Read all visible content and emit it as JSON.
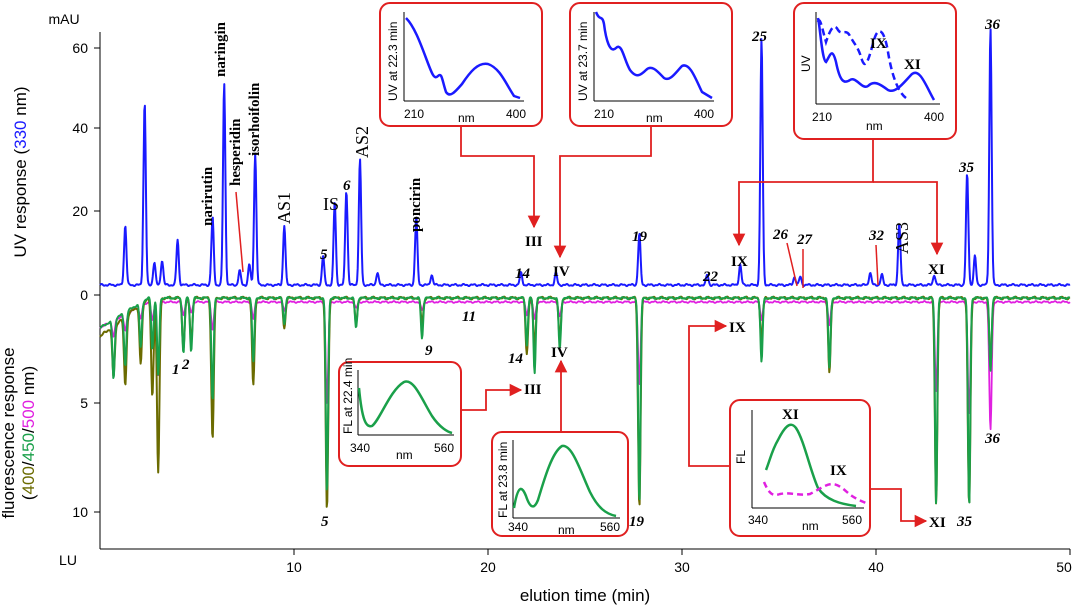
{
  "colors": {
    "uv": "#1a1aff",
    "fl400": "#6b6b00",
    "fl450": "#1aa04a",
    "fl500": "#e020e0",
    "callout": "#e02020",
    "axis": "#000000"
  },
  "chart_data": {
    "type": "line",
    "xlabel": "elution time (min)",
    "xlim": [
      0,
      50
    ],
    "x_ticks": [
      "10",
      "20",
      "30",
      "40",
      "50"
    ],
    "uv_axis": {
      "unit": "mAU",
      "ylim": [
        0,
        65
      ],
      "ticks": [
        "0",
        "20",
        "40",
        "60"
      ],
      "label_parts": [
        "UV response (",
        "330",
        " nm)"
      ]
    },
    "fl_axis": {
      "unit": "LU",
      "ylim": [
        0,
        11
      ],
      "ticks": [
        "5",
        "10"
      ],
      "label_line1": "fluorescence  response",
      "label_parts": [
        "(",
        "400",
        "/",
        "450",
        "/",
        "500",
        " nm)"
      ]
    },
    "uv_peaks": [
      {
        "t": 1.3,
        "h": 14.5
      },
      {
        "t": 2.3,
        "h": 44.5
      },
      {
        "t": 2.8,
        "h": 5.5
      },
      {
        "t": 3.2,
        "h": 6
      },
      {
        "t": 4.0,
        "h": 11
      },
      {
        "t": 5.8,
        "h": 16.5
      },
      {
        "t": 6.4,
        "h": 49
      },
      {
        "t": 7.2,
        "h": 3.5
      },
      {
        "t": 7.7,
        "h": 5
      },
      {
        "t": 8.0,
        "h": 32
      },
      {
        "t": 9.5,
        "h": 14.5
      },
      {
        "t": 11.5,
        "h": 7
      },
      {
        "t": 12.1,
        "h": 20
      },
      {
        "t": 12.7,
        "h": 23
      },
      {
        "t": 13.4,
        "h": 30.5
      },
      {
        "t": 14.3,
        "h": 3
      },
      {
        "t": 16.3,
        "h": 16.5
      },
      {
        "t": 17.1,
        "h": 2.5
      },
      {
        "t": 21.7,
        "h": 3
      },
      {
        "t": 23.5,
        "h": 3
      },
      {
        "t": 27.8,
        "h": 12.5
      },
      {
        "t": 31.3,
        "h": 2.5
      },
      {
        "t": 33.0,
        "h": 5
      },
      {
        "t": 34.1,
        "h": 60
      },
      {
        "t": 35.8,
        "h": 2
      },
      {
        "t": 36.1,
        "h": 2
      },
      {
        "t": 39.7,
        "h": 3
      },
      {
        "t": 40.3,
        "h": 2.5
      },
      {
        "t": 41.2,
        "h": 15
      },
      {
        "t": 43.0,
        "h": 2.5
      },
      {
        "t": 44.7,
        "h": 27
      },
      {
        "t": 45.1,
        "h": 7
      },
      {
        "t": 45.9,
        "h": 62.5
      }
    ],
    "fl_peaks": [
      {
        "t": 0.7,
        "a": 2.4,
        "b": 2.8,
        "c": 0.8
      },
      {
        "t": 1.3,
        "a": 3.2,
        "b": 2.5,
        "c": 0.8
      },
      {
        "t": 2.1,
        "a": 2.8,
        "b": 2.1,
        "c": 0.6
      },
      {
        "t": 2.7,
        "a": 4.6,
        "b": 2.4,
        "c": 0.9
      },
      {
        "t": 3.0,
        "a": 8.2,
        "b": 3.6,
        "c": 3.4
      },
      {
        "t": 4.3,
        "a": 2.3,
        "b": 2.6,
        "c": 0.6
      },
      {
        "t": 4.7,
        "a": 2.0,
        "b": 2.5,
        "c": 0.5
      },
      {
        "t": 5.8,
        "a": 6.6,
        "b": 4.8,
        "c": 1.3
      },
      {
        "t": 7.9,
        "a": 4.1,
        "b": 3.0,
        "c": 0.8
      },
      {
        "t": 9.5,
        "a": 1.4,
        "b": 1.2,
        "c": 0.4
      },
      {
        "t": 11.7,
        "a": 10.0,
        "b": 9.2,
        "c": 4.8
      },
      {
        "t": 13.2,
        "a": 1.2,
        "b": 1.4,
        "c": 0.3
      },
      {
        "t": 16.6,
        "a": 1.2,
        "b": 1.9,
        "c": 0.4
      },
      {
        "t": 22.0,
        "a": 2.6,
        "b": 2.2,
        "c": 0.6
      },
      {
        "t": 22.4,
        "a": 2.3,
        "b": 3.5,
        "c": 0.8
      },
      {
        "t": 23.7,
        "a": 1.9,
        "b": 2.4,
        "c": 0.7
      },
      {
        "t": 27.8,
        "a": 9.8,
        "b": 9.6,
        "c": 3.9
      },
      {
        "t": 34.1,
        "a": 2.0,
        "b": 3.0,
        "c": 0.8
      },
      {
        "t": 37.6,
        "a": 3.5,
        "b": 3.3,
        "c": 1.1
      },
      {
        "t": 43.1,
        "a": 9.6,
        "b": 9.6,
        "c": 4.2
      },
      {
        "t": 44.8,
        "a": 9.8,
        "b": 9.8,
        "c": 5.3
      },
      {
        "t": 45.9,
        "a": 3.2,
        "b": 3.4,
        "c": 6.0
      }
    ],
    "labels": {
      "naringin": "naringin",
      "narirutin": "narirutin",
      "hesperidin": "hesperidin",
      "isorhoifolin": "isorhoifolin",
      "as1": "AS1",
      "is": "IS",
      "as2": "AS2",
      "poncirin": "poncirin",
      "as3": "AS3",
      "n5": "5",
      "n6": "6",
      "n14": "14",
      "n19": "19",
      "n22": "22",
      "n25": "25",
      "n26": "26",
      "n27": "27",
      "n32": "32",
      "n35": "35",
      "n36": "36",
      "r3": "III",
      "r4": "IV",
      "r9": "IX",
      "r11": "XI",
      "f1": "1",
      "f2": "2",
      "f5": "5",
      "f9": "9",
      "f11": "11",
      "f14": "14",
      "f19": "19",
      "f35": "35",
      "f36": "36",
      "fr3": "III",
      "fr4": "IV",
      "fr9": "IX",
      "fr11": "XI"
    },
    "insets": {
      "uv1": {
        "ylabel": "UV at 22.3 min",
        "xmin": "210",
        "xmax": "400",
        "xlabel": "nm"
      },
      "uv2": {
        "ylabel": "UV at 23.7 min",
        "xmin": "210",
        "xmax": "400",
        "xlabel": "nm"
      },
      "uv3": {
        "ylabel": "UV",
        "xmin": "210",
        "xmax": "400",
        "xlabel": "nm",
        "lbl_ix": "IX",
        "lbl_xi": "XI"
      },
      "fl1": {
        "ylabel": "FL at 22.4 min",
        "xmin": "340",
        "xmax": "560",
        "xlabel": "nm"
      },
      "fl2": {
        "ylabel": "FL at 23.8 min",
        "xmin": "340",
        "xmax": "560",
        "xlabel": "nm"
      },
      "fl3": {
        "ylabel": "FL",
        "xmin": "340",
        "xmax": "560",
        "xlabel": "nm",
        "lbl_xi": "XI",
        "lbl_ix": "IX"
      }
    }
  }
}
